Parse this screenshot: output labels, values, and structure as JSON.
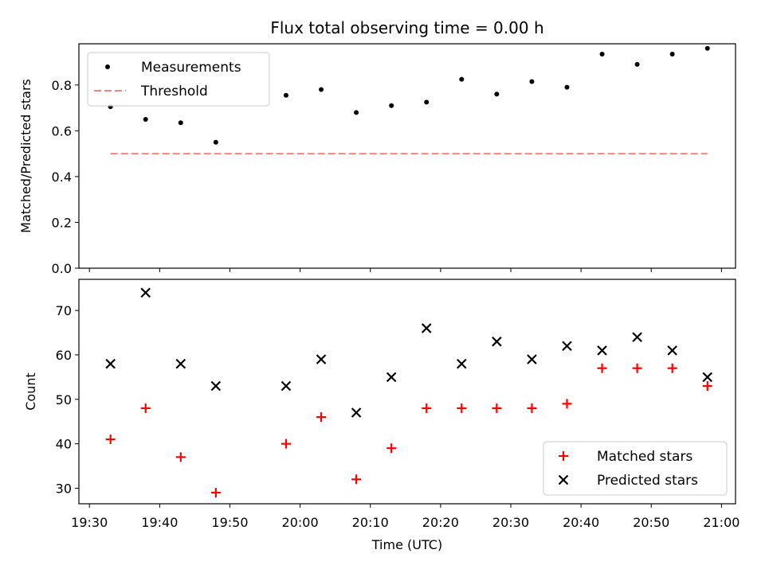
{
  "chart_data": [
    {
      "type": "scatter",
      "title": "Flux total observing time = 0.00 h",
      "xlabel": "",
      "ylabel": "Matched/Predicted stars",
      "x_ticks": [
        "19:30",
        "19:40",
        "19:50",
        "20:00",
        "20:10",
        "20:20",
        "20:30",
        "20:40",
        "20:50",
        "21:00"
      ],
      "y_ticks": [
        "0.0",
        "0.2",
        "0.4",
        "0.6",
        "0.8"
      ],
      "ylim": [
        0,
        0.98
      ],
      "xlim": [
        "19:28:30",
        "21:02:00"
      ],
      "series": [
        {
          "name": "Measurements",
          "marker": "dot",
          "color": "#000000",
          "x": [
            "19:33",
            "19:38",
            "19:43",
            "19:48",
            "19:58",
            "20:03",
            "20:08",
            "20:13",
            "20:18",
            "20:23",
            "20:28",
            "20:33",
            "20:38",
            "20:43",
            "20:48",
            "20:53",
            "20:58"
          ],
          "values": [
            0.705,
            0.65,
            0.635,
            0.55,
            0.755,
            0.78,
            0.68,
            0.71,
            0.725,
            0.825,
            0.76,
            0.815,
            0.79,
            0.935,
            0.89,
            0.935,
            0.96
          ]
        },
        {
          "name": "Threshold",
          "marker": "dashed-line",
          "color": "#ff8080",
          "x": [
            "19:33",
            "20:58"
          ],
          "values": [
            0.5,
            0.5
          ]
        }
      ],
      "legend": "top-left"
    },
    {
      "type": "scatter",
      "title": "",
      "xlabel": "Time (UTC)",
      "ylabel": "Count",
      "x_ticks": [
        "19:30",
        "19:40",
        "19:50",
        "20:00",
        "20:10",
        "20:20",
        "20:30",
        "20:40",
        "20:50",
        "21:00"
      ],
      "y_ticks": [
        "30",
        "40",
        "50",
        "60",
        "70"
      ],
      "ylim": [
        26.5,
        77
      ],
      "xlim": [
        "19:28:30",
        "21:02:00"
      ],
      "series": [
        {
          "name": "Matched stars",
          "marker": "plus",
          "color": "#ff0000",
          "x": [
            "19:33",
            "19:38",
            "19:43",
            "19:48",
            "19:58",
            "20:03",
            "20:08",
            "20:13",
            "20:18",
            "20:23",
            "20:28",
            "20:33",
            "20:38",
            "20:43",
            "20:48",
            "20:53",
            "20:58"
          ],
          "values": [
            41,
            48,
            37,
            29,
            40,
            46,
            32,
            39,
            48,
            48,
            48,
            48,
            49,
            57,
            57,
            57,
            53
          ]
        },
        {
          "name": "Predicted stars",
          "marker": "x",
          "color": "#000000",
          "x": [
            "19:33",
            "19:38",
            "19:43",
            "19:48",
            "19:58",
            "20:03",
            "20:08",
            "20:13",
            "20:18",
            "20:23",
            "20:28",
            "20:33",
            "20:38",
            "20:43",
            "20:48",
            "20:53",
            "20:58"
          ],
          "values": [
            58,
            74,
            58,
            53,
            53,
            59,
            47,
            55,
            66,
            58,
            63,
            59,
            62,
            61,
            64,
            61,
            55
          ]
        }
      ],
      "legend": "bottom-right"
    }
  ]
}
